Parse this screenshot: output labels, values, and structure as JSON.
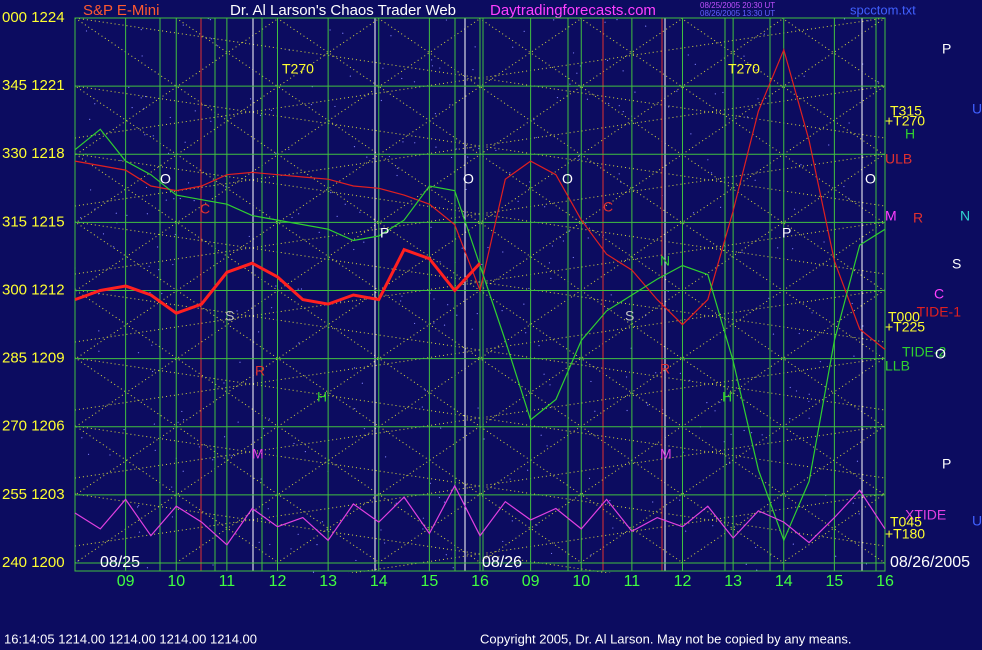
{
  "chart_data": {
    "type": "line",
    "title": "S&P E-Mini",
    "header": {
      "site": "Dr. Al Larson's Chaos Trader Web",
      "url": "Daytradingforecasts.com",
      "stamp1": "08/25/2005 20:30 UT",
      "stamp2": "08/26/2005 13:30 UT",
      "file": "spcctom.txt"
    },
    "footer": {
      "quote": "16:14:05  1214.00 1214.00 1214.00 1214.00",
      "copyright": "Copyright 2005, Dr. Al Larson. May not be copied by any means."
    },
    "dates": [
      "08/25",
      "08/26",
      "08/26/2005"
    ],
    "x": [
      0,
      0.5,
      1,
      1.5,
      2,
      2.5,
      3,
      3.5,
      4,
      4.5,
      5,
      5.5,
      6,
      6.5,
      7,
      7.5,
      8,
      8.5,
      9,
      9.5,
      10,
      10.5,
      11,
      11.5,
      12,
      12.5,
      13,
      13.5,
      14,
      14.5,
      15,
      15.5,
      16
    ],
    "xlim": [
      0,
      16
    ],
    "xticks": [
      {
        "value": 1,
        "label": "09"
      },
      {
        "value": 2,
        "label": "10"
      },
      {
        "value": 3,
        "label": "11"
      },
      {
        "value": 4,
        "label": "12"
      },
      {
        "value": 5,
        "label": "13"
      },
      {
        "value": 6,
        "label": "14"
      },
      {
        "value": 7,
        "label": "15"
      },
      {
        "value": 8,
        "label": "16"
      },
      {
        "value": 9,
        "label": "09"
      },
      {
        "value": 10,
        "label": "10"
      },
      {
        "value": 11,
        "label": "11"
      },
      {
        "value": 12,
        "label": "12"
      },
      {
        "value": 13,
        "label": "13"
      },
      {
        "value": 14,
        "label": "14"
      },
      {
        "value": 15,
        "label": "15"
      },
      {
        "value": 16,
        "label": "16"
      }
    ],
    "ylim": [
      1200,
      1224
    ],
    "yticks": [
      {
        "value": 1224,
        "label": "000 1224"
      },
      {
        "value": 1221,
        "label": "345 1221"
      },
      {
        "value": 1218,
        "label": "330 1218"
      },
      {
        "value": 1215,
        "label": "315 1215"
      },
      {
        "value": 1212,
        "label": "300 1212"
      },
      {
        "value": 1209,
        "label": "285 1209"
      },
      {
        "value": 1206,
        "label": "270 1206"
      },
      {
        "value": 1203,
        "label": "255 1203"
      },
      {
        "value": 1200,
        "label": "240 1200"
      }
    ],
    "grid": true,
    "price": {
      "color": "#ff2020",
      "values": [
        1211.6,
        1212.0,
        1212.2,
        1211.8,
        1211.0,
        1211.4,
        1212.8,
        1213.2,
        1212.6,
        1211.6,
        1211.4,
        1211.8,
        1211.6,
        1213.8,
        1213.4,
        1212.0,
        1213.2,
        null,
        null,
        null,
        null,
        null,
        null,
        null,
        null,
        null,
        null,
        null,
        null,
        null,
        null,
        null,
        null
      ]
    },
    "series": [
      {
        "name": "-TIDE-1",
        "color": "#e02020",
        "values": [
          1217.7,
          1217.5,
          1217.3,
          1216.6,
          1216.4,
          1216.6,
          1217.1,
          1217.2,
          1217.1,
          1217.0,
          1216.9,
          1216.6,
          1216.5,
          1216.2,
          1215.8,
          1214.9,
          1212.0,
          1216.9,
          1217.7,
          1217.1,
          1215.1,
          1213.6,
          1212.9,
          1211.6,
          1210.5,
          1211.6,
          1215.5,
          1219.9,
          1222.6,
          1218.6,
          1213.3,
          1210.3,
          1209.4
        ]
      },
      {
        "name": "TIDE-2",
        "color": "#30d030",
        "values": [
          1218.2,
          1219.1,
          1217.7,
          1217.1,
          1216.2,
          1216.0,
          1215.8,
          1215.3,
          1215.1,
          1214.9,
          1214.7,
          1214.2,
          1214.4,
          1215.1,
          1216.6,
          1216.4,
          1213.1,
          1209.8,
          1206.3,
          1207.2,
          1209.8,
          1211.1,
          1211.8,
          1212.5,
          1213.1,
          1212.7,
          1208.9,
          1204.1,
          1201.0,
          1203.6,
          1209.8,
          1214.0,
          1214.7
        ]
      },
      {
        "name": "XTIDE",
        "color": "#e040e0",
        "values": [
          1202.2,
          1201.5,
          1202.8,
          1201.2,
          1202.5,
          1201.8,
          1200.8,
          1202.4,
          1201.6,
          1202.0,
          1201.0,
          1202.6,
          1201.8,
          1202.9,
          1201.3,
          1203.4,
          1201.2,
          1202.7,
          1201.9,
          1202.4,
          1201.5,
          1202.8,
          1201.4,
          1202.0,
          1201.6,
          1202.5,
          1201.1,
          1202.3,
          1201.8,
          1200.9,
          1202.0,
          1203.2,
          1201.5
        ]
      }
    ],
    "chart_labels": [
      "T270",
      "T270",
      "O",
      "O",
      "O",
      "O",
      "C",
      "C",
      "M",
      "M",
      "P",
      "P",
      "N",
      "S",
      "S",
      "H",
      "H",
      "R",
      "R"
    ],
    "right_labels": [
      "P",
      "U",
      "T315",
      "+T270",
      "H",
      "ULB",
      "M",
      "R",
      "N",
      "S",
      "C",
      "T000",
      "+T225",
      "O",
      "LLB",
      "P",
      "U",
      "T045",
      "+T180"
    ]
  }
}
